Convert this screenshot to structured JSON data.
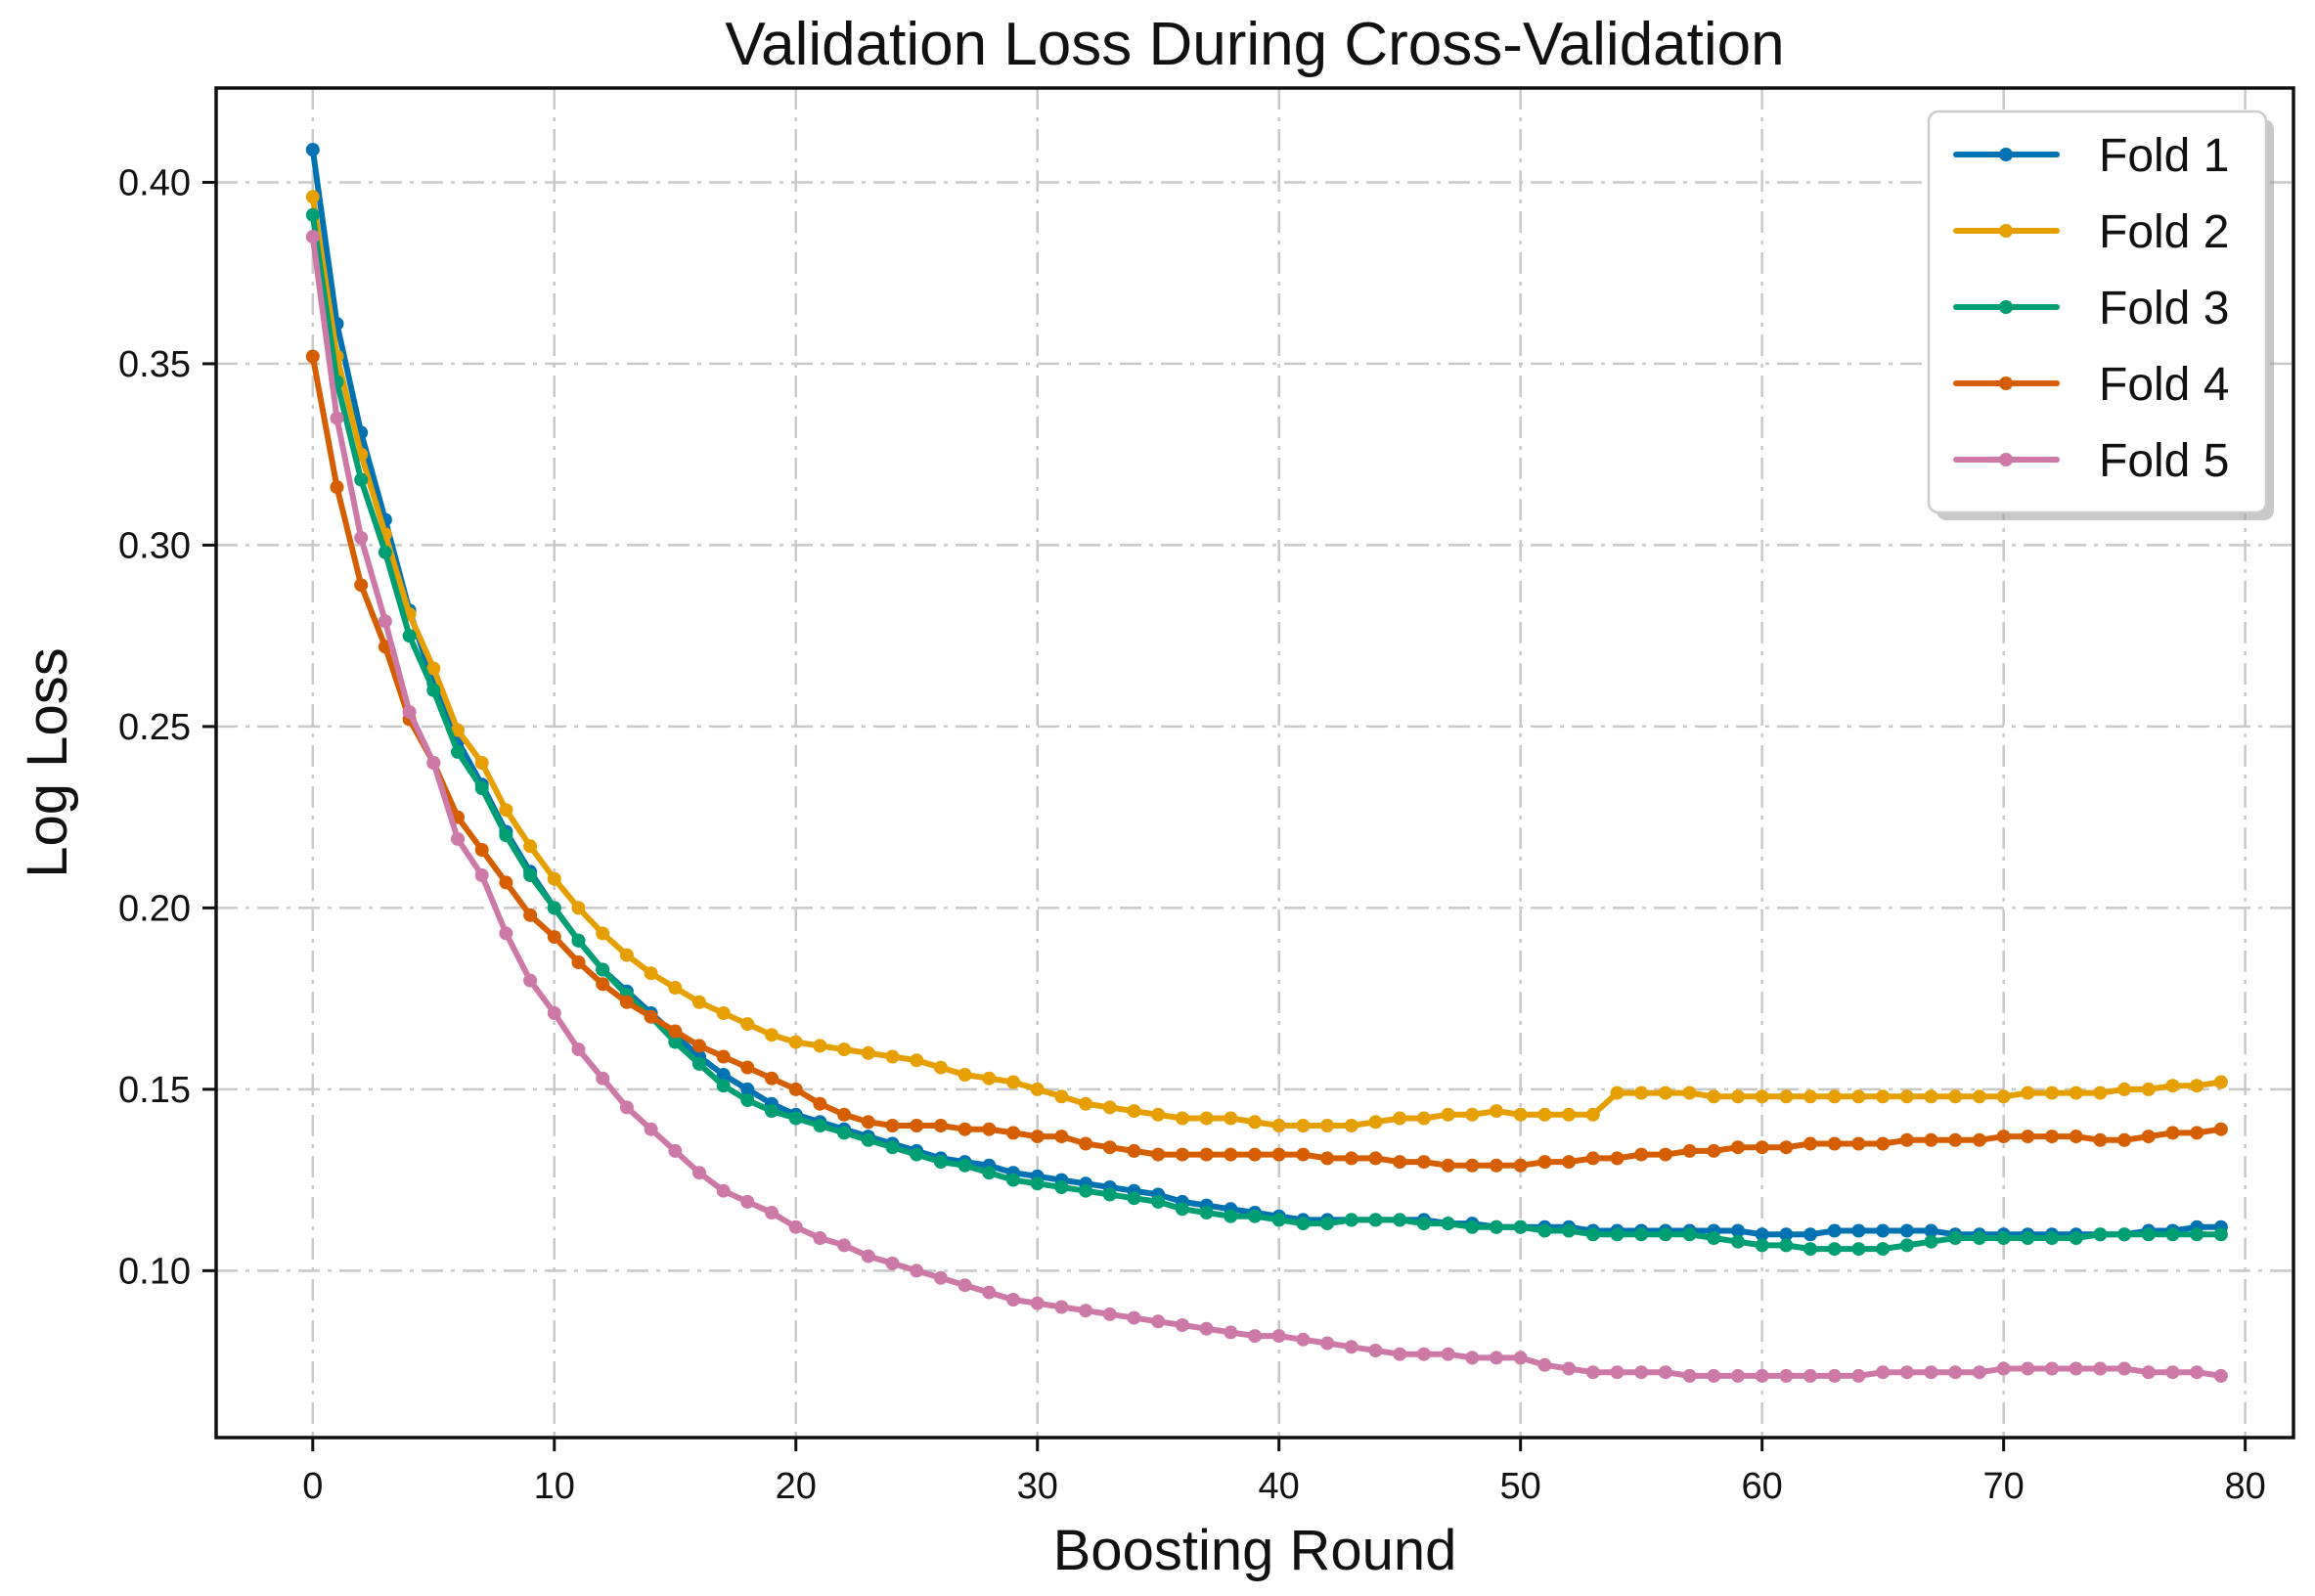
{
  "chart_data": {
    "type": "line",
    "title": "Validation Loss During Cross-Validation",
    "xlabel": "Boosting Round",
    "ylabel": "Log Loss",
    "xlim": [
      -4,
      82
    ],
    "ylim": [
      0.054,
      0.426
    ],
    "xticks": [
      0,
      10,
      20,
      30,
      40,
      50,
      60,
      70,
      80
    ],
    "xtick_labels": [
      "0",
      "10",
      "20",
      "30",
      "40",
      "50",
      "60",
      "70",
      "80"
    ],
    "yticks": [
      0.1,
      0.15,
      0.2,
      0.25,
      0.3,
      0.35,
      0.4
    ],
    "ytick_labels": [
      "0.10",
      "0.15",
      "0.20",
      "0.25",
      "0.30",
      "0.35",
      "0.40"
    ],
    "grid": true,
    "legend_position": "top-right",
    "x_start": 0,
    "series": [
      {
        "name": "Fold 1",
        "color": "#0072b2",
        "values": [
          0.409,
          0.361,
          0.331,
          0.307,
          0.282,
          0.262,
          0.246,
          0.234,
          0.221,
          0.21,
          0.2,
          0.191,
          0.183,
          0.177,
          0.171,
          0.165,
          0.159,
          0.154,
          0.15,
          0.146,
          0.143,
          0.141,
          0.139,
          0.137,
          0.135,
          0.133,
          0.131,
          0.13,
          0.129,
          0.127,
          0.126,
          0.125,
          0.124,
          0.123,
          0.122,
          0.121,
          0.119,
          0.118,
          0.117,
          0.116,
          0.115,
          0.114,
          0.114,
          0.114,
          0.114,
          0.114,
          0.114,
          0.113,
          0.113,
          0.112,
          0.112,
          0.112,
          0.112,
          0.111,
          0.111,
          0.111,
          0.111,
          0.111,
          0.111,
          0.111,
          0.11,
          0.11,
          0.11,
          0.111,
          0.111,
          0.111,
          0.111,
          0.111,
          0.11,
          0.11,
          0.11,
          0.11,
          0.11,
          0.11,
          0.11,
          0.11,
          0.111,
          0.111,
          0.112,
          0.112
        ]
      },
      {
        "name": "Fold 2",
        "color": "#e69f00",
        "values": [
          0.396,
          0.352,
          0.325,
          0.303,
          0.281,
          0.266,
          0.249,
          0.24,
          0.227,
          0.217,
          0.208,
          0.2,
          0.193,
          0.187,
          0.182,
          0.178,
          0.174,
          0.171,
          0.168,
          0.165,
          0.163,
          0.162,
          0.161,
          0.16,
          0.159,
          0.158,
          0.156,
          0.154,
          0.153,
          0.152,
          0.15,
          0.148,
          0.146,
          0.145,
          0.144,
          0.143,
          0.142,
          0.142,
          0.142,
          0.141,
          0.14,
          0.14,
          0.14,
          0.14,
          0.141,
          0.142,
          0.142,
          0.143,
          0.143,
          0.144,
          0.143,
          0.143,
          0.143,
          0.143,
          0.149,
          0.149,
          0.149,
          0.149,
          0.148,
          0.148,
          0.148,
          0.148,
          0.148,
          0.148,
          0.148,
          0.148,
          0.148,
          0.148,
          0.148,
          0.148,
          0.148,
          0.149,
          0.149,
          0.149,
          0.149,
          0.15,
          0.15,
          0.151,
          0.151,
          0.152
        ]
      },
      {
        "name": "Fold 3",
        "color": "#009e73",
        "values": [
          0.391,
          0.345,
          0.318,
          0.298,
          0.275,
          0.26,
          0.243,
          0.233,
          0.22,
          0.209,
          0.2,
          0.191,
          0.183,
          0.176,
          0.17,
          0.163,
          0.157,
          0.151,
          0.147,
          0.144,
          0.142,
          0.14,
          0.138,
          0.136,
          0.134,
          0.132,
          0.13,
          0.129,
          0.127,
          0.125,
          0.124,
          0.123,
          0.122,
          0.121,
          0.12,
          0.119,
          0.117,
          0.116,
          0.115,
          0.115,
          0.114,
          0.113,
          0.113,
          0.114,
          0.114,
          0.114,
          0.113,
          0.113,
          0.112,
          0.112,
          0.112,
          0.111,
          0.111,
          0.11,
          0.11,
          0.11,
          0.11,
          0.11,
          0.109,
          0.108,
          0.107,
          0.107,
          0.106,
          0.106,
          0.106,
          0.106,
          0.107,
          0.108,
          0.109,
          0.109,
          0.109,
          0.109,
          0.109,
          0.109,
          0.11,
          0.11,
          0.11,
          0.11,
          0.11,
          0.11
        ]
      },
      {
        "name": "Fold 4",
        "color": "#d55e00",
        "values": [
          0.352,
          0.316,
          0.289,
          0.272,
          0.252,
          0.24,
          0.225,
          0.216,
          0.207,
          0.198,
          0.192,
          0.185,
          0.179,
          0.174,
          0.17,
          0.166,
          0.162,
          0.159,
          0.156,
          0.153,
          0.15,
          0.146,
          0.143,
          0.141,
          0.14,
          0.14,
          0.14,
          0.139,
          0.139,
          0.138,
          0.137,
          0.137,
          0.135,
          0.134,
          0.133,
          0.132,
          0.132,
          0.132,
          0.132,
          0.132,
          0.132,
          0.132,
          0.131,
          0.131,
          0.131,
          0.13,
          0.13,
          0.129,
          0.129,
          0.129,
          0.129,
          0.13,
          0.13,
          0.131,
          0.131,
          0.132,
          0.132,
          0.133,
          0.133,
          0.134,
          0.134,
          0.134,
          0.135,
          0.135,
          0.135,
          0.135,
          0.136,
          0.136,
          0.136,
          0.136,
          0.137,
          0.137,
          0.137,
          0.137,
          0.136,
          0.136,
          0.137,
          0.138,
          0.138,
          0.139
        ]
      },
      {
        "name": "Fold 5",
        "color": "#cc79a7",
        "values": [
          0.385,
          0.335,
          0.302,
          0.279,
          0.254,
          0.24,
          0.219,
          0.209,
          0.193,
          0.18,
          0.171,
          0.161,
          0.153,
          0.145,
          0.139,
          0.133,
          0.127,
          0.122,
          0.119,
          0.116,
          0.112,
          0.109,
          0.107,
          0.104,
          0.102,
          0.1,
          0.098,
          0.096,
          0.094,
          0.092,
          0.091,
          0.09,
          0.089,
          0.088,
          0.087,
          0.086,
          0.085,
          0.084,
          0.083,
          0.082,
          0.082,
          0.081,
          0.08,
          0.079,
          0.078,
          0.077,
          0.077,
          0.077,
          0.076,
          0.076,
          0.076,
          0.074,
          0.073,
          0.072,
          0.072,
          0.072,
          0.072,
          0.071,
          0.071,
          0.071,
          0.071,
          0.071,
          0.071,
          0.071,
          0.071,
          0.072,
          0.072,
          0.072,
          0.072,
          0.072,
          0.073,
          0.073,
          0.073,
          0.073,
          0.073,
          0.073,
          0.072,
          0.072,
          0.072,
          0.071
        ]
      }
    ]
  }
}
